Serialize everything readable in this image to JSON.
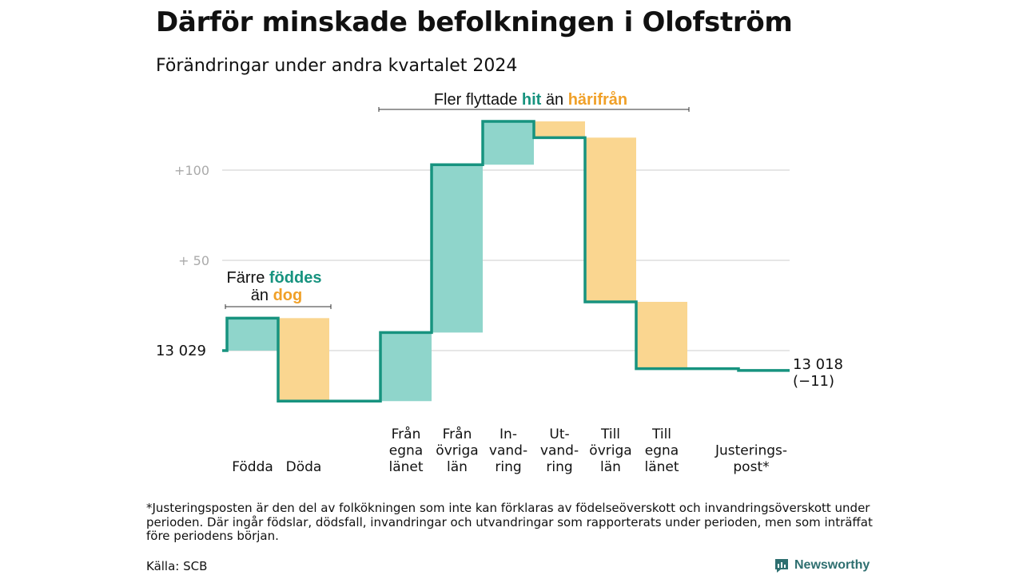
{
  "title": "Därför minskade befolkningen i Olofström",
  "subtitle": "Förändringar under andra kvartalet 2024",
  "chart_data": {
    "type": "waterfall",
    "start_value": 13029,
    "start_label": "13  029",
    "end_value": 13018,
    "end_label_line1": "13 018",
    "end_label_line2": "(−11)",
    "ylim": [
      -25,
      125
    ],
    "yticks": [
      {
        "value": 100,
        "label": "+100"
      },
      {
        "value": 50,
        "label": "+  50"
      },
      {
        "value": 0,
        "label": ""
      }
    ],
    "grid": true,
    "colors": {
      "in": "#8fd5cb",
      "out": "#fad690",
      "line": "#17937f",
      "text_in": "#17937f",
      "text_out": "#f0a028",
      "axis_text": "#aaaaaa"
    },
    "steps": [
      {
        "key": "fodda",
        "label_lines": [
          "Födda"
        ],
        "value": 18,
        "kind": "in",
        "group": 1
      },
      {
        "key": "doda",
        "label_lines": [
          "Döda"
        ],
        "value": -46,
        "kind": "out",
        "group": 1
      },
      {
        "key": "fran-egna-lanet",
        "label_lines": [
          "Från",
          "egna",
          "länet"
        ],
        "value": 38,
        "kind": "in",
        "group": 2
      },
      {
        "key": "fran-ovriga-lan",
        "label_lines": [
          "Från",
          "övriga",
          "län"
        ],
        "value": 93,
        "kind": "in",
        "group": 2
      },
      {
        "key": "invandring",
        "label_lines": [
          "In-",
          "vand-",
          "ring"
        ],
        "value": 24,
        "kind": "in",
        "group": 2
      },
      {
        "key": "utvandring",
        "label_lines": [
          "Ut-",
          "vand-",
          "ring"
        ],
        "value": -9,
        "kind": "out",
        "group": 2
      },
      {
        "key": "till-ovriga-lan",
        "label_lines": [
          "Till",
          "övriga",
          "län"
        ],
        "value": -91,
        "kind": "out",
        "group": 2
      },
      {
        "key": "till-egna-lanet",
        "label_lines": [
          "Till",
          "egna",
          "länet"
        ],
        "value": -37,
        "kind": "out",
        "group": 2
      },
      {
        "key": "justeringspost",
        "label_lines": [
          "Justerings-",
          "post*"
        ],
        "value": -1,
        "kind": "adj",
        "group": 3
      }
    ],
    "annotations": {
      "born": {
        "line1": "Färre",
        "highlight1": "föddes",
        "line2": "än",
        "highlight2": "dog"
      },
      "moved": {
        "text1": "Fler flyttade",
        "highlight1": "hit",
        "text2": "än",
        "highlight2": "härifrån"
      }
    }
  },
  "footnote": "*Justeringsposten är den del av folkökningen som inte kan förklaras av födelseöverskott och invandringsöverskott under perioden. Där ingår födslar, dödsfall, invandringar och utvandringar som rapporterats under perioden, men som inträffat före periodens början.",
  "source": "Källa: SCB",
  "brand": {
    "name": "Newsworthy",
    "color": "#2e6f70",
    "icon": "newsworthy-logo-icon"
  }
}
